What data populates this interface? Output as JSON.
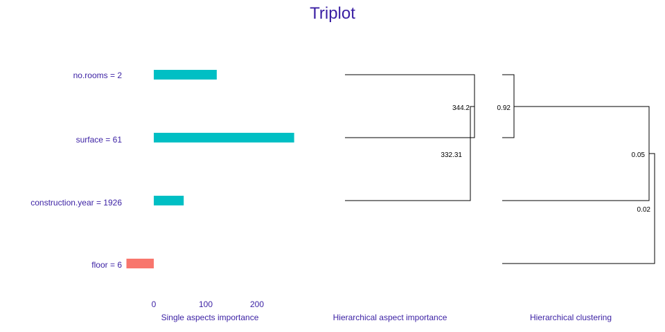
{
  "chart_data": {
    "type": "triplot",
    "title": "Triplot",
    "colors": {
      "positive": "#00bfc4",
      "negative": "#f8766d",
      "text": "#3a1fa3",
      "tree": "#000000"
    },
    "single_aspects": {
      "type": "bar",
      "xlabel": "Single aspects importance",
      "categories": [
        "no.rooms = 2",
        "surface = 61",
        "construction.year = 1926",
        "floor = 6"
      ],
      "values": [
        122,
        272,
        58,
        -53
      ],
      "xticks": [
        "0",
        "100",
        "200"
      ],
      "xlim": [
        -53,
        272
      ]
    },
    "hierarchical_aspects": {
      "type": "dendrogram",
      "xlabel": "Hierarchical aspect importance",
      "merges": [
        {
          "members": [
            "no.rooms = 2",
            "surface = 61"
          ],
          "label": "344.2"
        },
        {
          "members": [
            "no.rooms = 2",
            "surface = 61",
            "construction.year = 1926"
          ],
          "label": "332.31"
        }
      ]
    },
    "hierarchical_clustering": {
      "type": "dendrogram",
      "xlabel": "Hierarchical clustering",
      "merges": [
        {
          "members": [
            "no.rooms = 2",
            "surface = 61"
          ],
          "label": "0.92"
        },
        {
          "members": [
            "no.rooms = 2",
            "surface = 61",
            "construction.year = 1926"
          ],
          "label": "0.05"
        },
        {
          "members": [
            "no.rooms = 2",
            "surface = 61",
            "construction.year = 1926",
            "floor = 6"
          ],
          "label": "0.02"
        }
      ]
    }
  }
}
